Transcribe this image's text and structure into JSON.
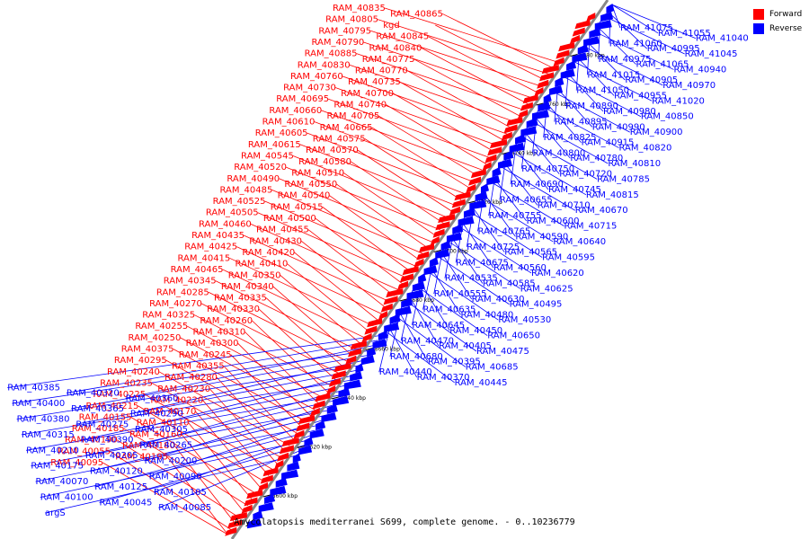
{
  "title": "Amycolatopsis mediterranei S699, complete genome. - 0..10236779",
  "legend": [
    {
      "label": "Forward",
      "color": "#ff0000"
    },
    {
      "label": "Reverse",
      "color": "#0000ff"
    }
  ],
  "axis_ticks": [
    "8600 kbp",
    "8620 kbp",
    "8640 kbp",
    "8660 kbp",
    "8680 kbp",
    "8700 kbp",
    "8720 kbp",
    "8740 kbp",
    "8760 kbp",
    "8780 kbp"
  ],
  "forward_labels": [
    "RAM_40835",
    "RAM_40865",
    "RAM_40805",
    "kgd",
    "RAM_40795",
    "RAM_40845",
    "RAM_40790",
    "RAM_40840",
    "RAM_40885",
    "RAM_40775",
    "RAM_40830",
    "RAM_40770",
    "RAM_40760",
    "RAM_40735",
    "RAM_40730",
    "RAM_40700",
    "RAM_40695",
    "RAM_40740",
    "RAM_40660",
    "RAM_40705",
    "RAM_40610",
    "RAM_40665",
    "RAM_40605",
    "RAM_40575",
    "RAM_40615",
    "RAM_40570",
    "RAM_40545",
    "RAM_40580",
    "RAM_40520",
    "RAM_40510",
    "RAM_40490",
    "RAM_40550",
    "RAM_40485",
    "RAM_40540",
    "RAM_40525",
    "RAM_40515",
    "RAM_40505",
    "RAM_40500",
    "RAM_40460",
    "RAM_40455",
    "RAM_40435",
    "RAM_40430",
    "RAM_40425",
    "RAM_40420",
    "RAM_40415",
    "RAM_40410",
    "RAM_40465",
    "RAM_40350",
    "RAM_40345",
    "RAM_40340",
    "RAM_40285",
    "RAM_40335",
    "RAM_40270",
    "RAM_40330",
    "RAM_40325",
    "RAM_40260",
    "RAM_40255",
    "RAM_40310",
    "RAM_40250",
    "RAM_40300",
    "RAM_40375",
    "RAM_40245",
    "RAM_40295",
    "RAM_40355",
    "RAM_40240",
    "RAM_40280",
    "RAM_40235",
    "RAM_40230",
    "RAM_40225",
    "RAM_40220",
    "RAM_40215",
    "RAM_40170",
    "RAM_40155",
    "RAM_40110",
    "RAM_40185",
    "RAM_40160",
    "RAM_40190",
    "RAM_40180",
    "RAM_40055",
    "RAM_40195",
    "RAM_40095"
  ],
  "reverse_labels": [
    "RAM_41075",
    "RAM_41055",
    "RAM_41040",
    "RAM_41060",
    "RAM_40995",
    "RAM_41045",
    "RAM_40975",
    "RAM_41065",
    "RAM_40940",
    "RAM_41015",
    "RAM_40905",
    "RAM_40970",
    "RAM_41050",
    "RAM_40955",
    "RAM_41020",
    "RAM_40890",
    "RAM_40980",
    "RAM_40850",
    "RAM_40895",
    "RAM_40990",
    "RAM_40900",
    "RAM_40825",
    "RAM_40915",
    "RAM_40820",
    "RAM_40800",
    "RAM_40780",
    "RAM_40810",
    "RAM_40750",
    "RAM_40720",
    "RAM_40785",
    "RAM_40690",
    "RAM_40745",
    "RAM_40815",
    "RAM_40655",
    "RAM_40710",
    "RAM_40670",
    "RAM_40755",
    "RAM_40600",
    "RAM_40715",
    "RAM_40765",
    "RAM_40590",
    "RAM_40640",
    "RAM_40725",
    "RAM_40565",
    "RAM_40595",
    "RAM_40675",
    "RAM_40560",
    "RAM_40620",
    "RAM_40535",
    "RAM_40585",
    "RAM_40625",
    "RAM_40555",
    "RAM_40630",
    "RAM_40495",
    "RAM_40635",
    "RAM_40480",
    "RAM_40530",
    "RAM_40645",
    "RAM_40450",
    "RAM_40650",
    "RAM_40470",
    "RAM_40405",
    "RAM_40475",
    "RAM_40680",
    "RAM_40395",
    "RAM_40685",
    "RAM_40440",
    "RAM_40370",
    "RAM_40445",
    "RAM_40385",
    "RAM_40320",
    "RAM_40360",
    "RAM_40400",
    "RAM_40365",
    "RAM_40290",
    "RAM_40380",
    "RAM_40275",
    "RAM_40305",
    "RAM_40315",
    "RAM_40390",
    "RAM_40265",
    "RAM_40210",
    "RAM_40205",
    "RAM_40200",
    "RAM_40175",
    "RAM_40120",
    "RAM_40090",
    "RAM_40070",
    "RAM_40125",
    "RAM_40105",
    "RAM_40100",
    "RAM_40045",
    "RAM_40085",
    "argS"
  ]
}
